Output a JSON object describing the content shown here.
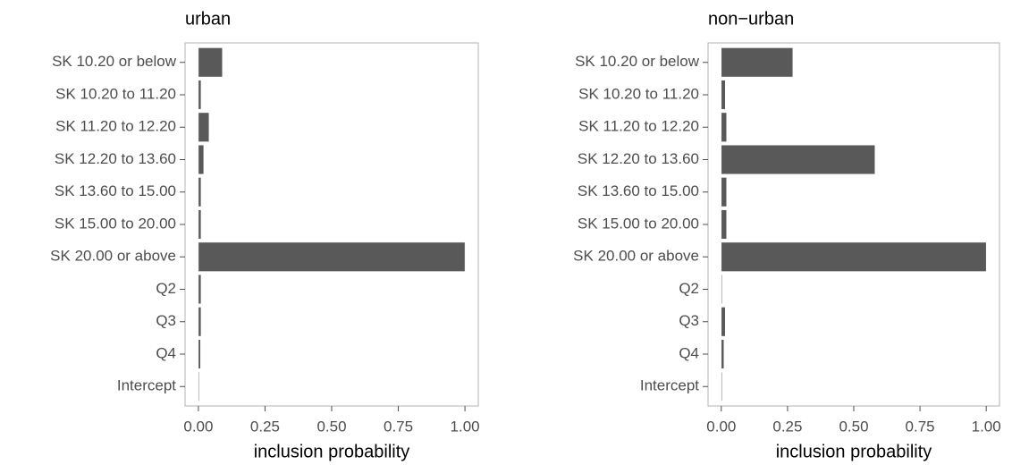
{
  "chart_data": [
    {
      "type": "bar",
      "orientation": "horizontal",
      "title": "urban",
      "x_label": "inclusion probability",
      "categories": [
        "SK 10.20 or below",
        "SK 10.20 to 11.20",
        "SK 11.20 to 12.20",
        "SK 12.20 to 13.60",
        "SK 13.60 to 15.00",
        "SK 15.00 to 20.00",
        "SK 20.00 or above",
        "Q2",
        "Q3",
        "Q4",
        "Intercept"
      ],
      "values": [
        0.09,
        0.01,
        0.04,
        0.02,
        0.01,
        0.01,
        1.0,
        0.01,
        0.01,
        0.008,
        0.003
      ],
      "color": "#595959",
      "xlim": [
        -0.05,
        1.05
      ],
      "xticks": [
        {
          "value": 0,
          "label": "0.00"
        },
        {
          "value": 0.25,
          "label": "0.25"
        },
        {
          "value": 0.5,
          "label": "0.50"
        },
        {
          "value": 0.75,
          "label": "0.75"
        },
        {
          "value": 1,
          "label": "1.00"
        }
      ]
    },
    {
      "type": "bar",
      "orientation": "horizontal",
      "title": "non−urban",
      "x_label": "inclusion probability",
      "categories": [
        "SK 10.20 or below",
        "SK 10.20 to 11.20",
        "SK 11.20 to 12.20",
        "SK 12.20 to 13.60",
        "SK 13.60 to 15.00",
        "SK 15.00 to 20.00",
        "SK 20.00 or above",
        "Q2",
        "Q3",
        "Q4",
        "Intercept"
      ],
      "values": [
        0.27,
        0.015,
        0.02,
        0.58,
        0.02,
        0.02,
        1.0,
        0.003,
        0.015,
        0.01,
        0.003
      ],
      "color": "#595959",
      "xlim": [
        -0.05,
        1.05
      ],
      "xticks": [
        {
          "value": 0,
          "label": "0.00"
        },
        {
          "value": 0.25,
          "label": "0.25"
        },
        {
          "value": 0.5,
          "label": "0.50"
        },
        {
          "value": 0.75,
          "label": "0.75"
        },
        {
          "value": 1,
          "label": "1.00"
        }
      ]
    }
  ]
}
